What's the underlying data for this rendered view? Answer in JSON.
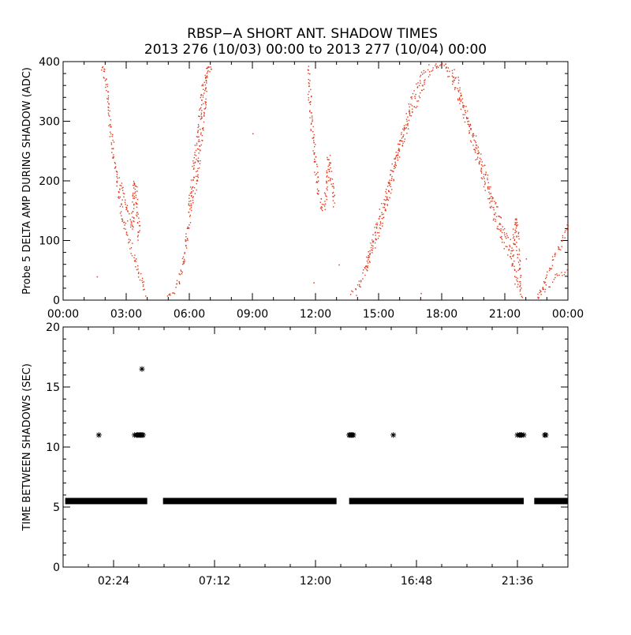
{
  "title_line1": "RBSP−A SHORT ANT. SHADOW TIMES",
  "title_line2": "2013 276 (10/03) 00:00 to 2013 277 (10/04) 00:00",
  "colors": {
    "top_points": "#e03a1e",
    "bottom_points": "#000000",
    "axes": "#000000"
  },
  "chart_data": [
    {
      "type": "scatter",
      "title": "RBSP−A SHORT ANT. SHADOW TIMES",
      "ylabel": "Probe 5 DELTA AMP DURING SHADOW (ADC)",
      "xlabel": "",
      "xlim_hours": [
        0,
        24
      ],
      "ylim": [
        0,
        400
      ],
      "x_ticks_hours": [
        0,
        3,
        6,
        9,
        12,
        15,
        18,
        21,
        24
      ],
      "x_tick_labels": [
        "00:00",
        "03:00",
        "06:00",
        "09:00",
        "12:00",
        "15:00",
        "18:00",
        "21:00",
        "00:00"
      ],
      "y_ticks": [
        0,
        100,
        200,
        300,
        400
      ],
      "y_tick_labels": [
        "0",
        "100",
        "200",
        "300",
        "400"
      ],
      "series": [
        {
          "name": "shadow_amp_a",
          "points": [
            [
              1.8,
              400
            ],
            [
              2.0,
              370
            ],
            [
              2.2,
              300
            ],
            [
              2.4,
              240
            ],
            [
              2.6,
              190
            ],
            [
              2.8,
              140
            ],
            [
              3.0,
              110
            ],
            [
              3.2,
              90
            ],
            [
              3.4,
              70
            ],
            [
              3.6,
              45
            ],
            [
              3.8,
              25
            ],
            [
              3.9,
              10
            ]
          ]
        },
        {
          "name": "shadow_amp_b",
          "points": [
            [
              2.7,
              200
            ],
            [
              2.9,
              170
            ],
            [
              3.1,
              140
            ],
            [
              3.25,
              120
            ],
            [
              3.4,
              200
            ],
            [
              3.5,
              150
            ],
            [
              3.6,
              100
            ]
          ]
        },
        {
          "name": "shadow_amp_c",
          "points": [
            [
              4.9,
              5
            ],
            [
              5.1,
              10
            ],
            [
              5.3,
              20
            ],
            [
              5.5,
              35
            ],
            [
              5.7,
              60
            ],
            [
              5.9,
              120
            ],
            [
              6.1,
              170
            ],
            [
              6.3,
              200
            ],
            [
              6.5,
              260
            ],
            [
              6.7,
              330
            ],
            [
              6.9,
              400
            ]
          ]
        },
        {
          "name": "shadow_amp_d",
          "points": [
            [
              6.0,
              160
            ],
            [
              6.2,
              220
            ],
            [
              6.4,
              280
            ],
            [
              6.6,
              350
            ],
            [
              7.0,
              400
            ]
          ]
        },
        {
          "name": "shadow_amp_e",
          "points": [
            [
              11.6,
              390
            ],
            [
              11.8,
              300
            ],
            [
              12.0,
              220
            ],
            [
              12.15,
              180
            ],
            [
              12.3,
              150
            ],
            [
              12.45,
              170
            ],
            [
              12.6,
              240
            ],
            [
              12.75,
              200
            ],
            [
              12.9,
              160
            ]
          ]
        },
        {
          "name": "shadow_amp_f",
          "points": [
            [
              13.6,
              8
            ],
            [
              13.9,
              15
            ],
            [
              14.2,
              40
            ],
            [
              14.5,
              70
            ],
            [
              14.8,
              110
            ],
            [
              15.1,
              150
            ],
            [
              15.5,
              200
            ],
            [
              16.0,
              270
            ],
            [
              16.5,
              330
            ],
            [
              17.0,
              380
            ],
            [
              17.5,
              400
            ],
            [
              18.0,
              395
            ],
            [
              18.5,
              370
            ],
            [
              19.0,
              320
            ],
            [
              19.5,
              260
            ],
            [
              20.0,
              200
            ],
            [
              20.5,
              140
            ],
            [
              20.9,
              95
            ],
            [
              21.2,
              80
            ],
            [
              21.4,
              60
            ],
            [
              21.6,
              20
            ]
          ]
        },
        {
          "name": "shadow_amp_g",
          "points": [
            [
              14.4,
              50
            ],
            [
              14.8,
              100
            ],
            [
              15.2,
              140
            ],
            [
              15.8,
              230
            ],
            [
              16.5,
              310
            ],
            [
              17.2,
              370
            ],
            [
              18.0,
              400
            ],
            [
              18.6,
              380
            ],
            [
              19.3,
              300
            ],
            [
              20.0,
              220
            ],
            [
              20.6,
              150
            ],
            [
              21.0,
              110
            ],
            [
              21.3,
              90
            ]
          ]
        },
        {
          "name": "shadow_amp_h",
          "points": [
            [
              21.3,
              60
            ],
            [
              21.5,
              140
            ],
            [
              21.7,
              40
            ],
            [
              21.8,
              5
            ]
          ]
        },
        {
          "name": "shadow_amp_i",
          "points": [
            [
              22.4,
              0
            ],
            [
              22.7,
              15
            ],
            [
              23.0,
              25
            ],
            [
              23.3,
              35
            ],
            [
              23.6,
              45
            ],
            [
              24.0,
              55
            ]
          ]
        },
        {
          "name": "shadow_amp_j",
          "points": [
            [
              22.6,
              10
            ],
            [
              22.9,
              35
            ],
            [
              23.2,
              60
            ],
            [
              23.5,
              85
            ],
            [
              23.8,
              110
            ],
            [
              24.0,
              130
            ]
          ]
        }
      ]
    },
    {
      "type": "scatter",
      "ylabel": "TIME BETWEEN SHADOWS (SEC)",
      "xlabel": "",
      "xlim_hours": [
        0,
        24
      ],
      "ylim": [
        0,
        20
      ],
      "x_ticks_hours": [
        2.4,
        7.2,
        12.0,
        16.8,
        21.6
      ],
      "x_tick_labels": [
        "02:24",
        "07:12",
        "12:00",
        "16:48",
        "21:36"
      ],
      "y_ticks": [
        0,
        5,
        10,
        15,
        20
      ],
      "y_tick_labels": [
        "0",
        "5",
        "10",
        "15",
        "20"
      ],
      "series": [
        {
          "name": "baseline_segments_hours",
          "marker": "*",
          "y": 5.5,
          "segments": [
            [
              0.1,
              4.0
            ],
            [
              4.75,
              13.0
            ],
            [
              13.6,
              18.0
            ],
            [
              18.0,
              21.9
            ],
            [
              22.4,
              24.0
            ]
          ]
        },
        {
          "name": "isolated_points",
          "marker": "*",
          "points": [
            [
              1.7,
              11
            ],
            [
              3.4,
              11
            ],
            [
              3.5,
              11
            ],
            [
              3.55,
              11
            ],
            [
              3.6,
              11
            ],
            [
              3.65,
              11
            ],
            [
              3.7,
              11
            ],
            [
              3.75,
              11
            ],
            [
              3.8,
              11
            ],
            [
              3.75,
              16.5
            ],
            [
              13.6,
              11
            ],
            [
              13.65,
              11
            ],
            [
              13.7,
              11
            ],
            [
              13.75,
              11
            ],
            [
              13.8,
              11
            ],
            [
              15.7,
              11
            ],
            [
              21.6,
              11
            ],
            [
              21.7,
              11
            ],
            [
              21.75,
              11
            ],
            [
              21.8,
              11
            ],
            [
              21.9,
              11
            ],
            [
              22.9,
              11
            ],
            [
              22.95,
              11
            ]
          ]
        }
      ]
    }
  ]
}
